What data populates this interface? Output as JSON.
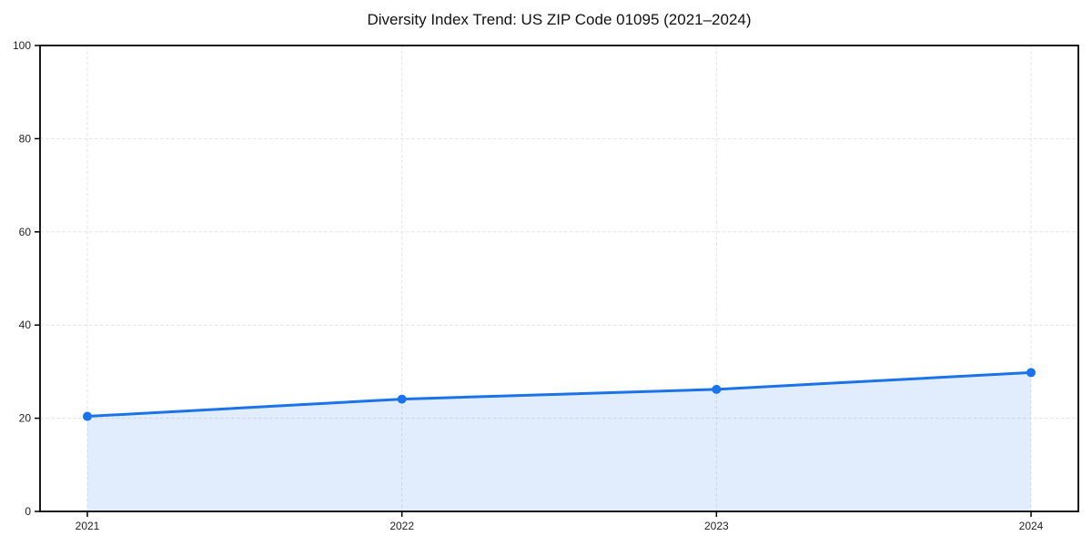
{
  "chart_data": {
    "type": "area",
    "title": "Diversity Index Trend: US ZIP Code 01095 (2021–2024)",
    "categories": [
      "2021",
      "2022",
      "2023",
      "2024"
    ],
    "series": [
      {
        "name": "Diversity Index",
        "values": [
          20.4,
          24.1,
          26.2,
          29.8
        ]
      }
    ],
    "xlabel": "",
    "ylabel": "",
    "ylim": [
      0,
      100
    ],
    "yticks": [
      0,
      20,
      40,
      60,
      80,
      100
    ],
    "grid": true,
    "legend": "none",
    "colors": {
      "line": "#1a73e8",
      "marker": "#1a73e8",
      "fill": "rgba(26,115,232,0.13)",
      "gridline": "#e3e3e3",
      "spine": "#000000",
      "tick_text": "#1f1f1f",
      "title_text": "#111111",
      "background": "#ffffff"
    }
  }
}
